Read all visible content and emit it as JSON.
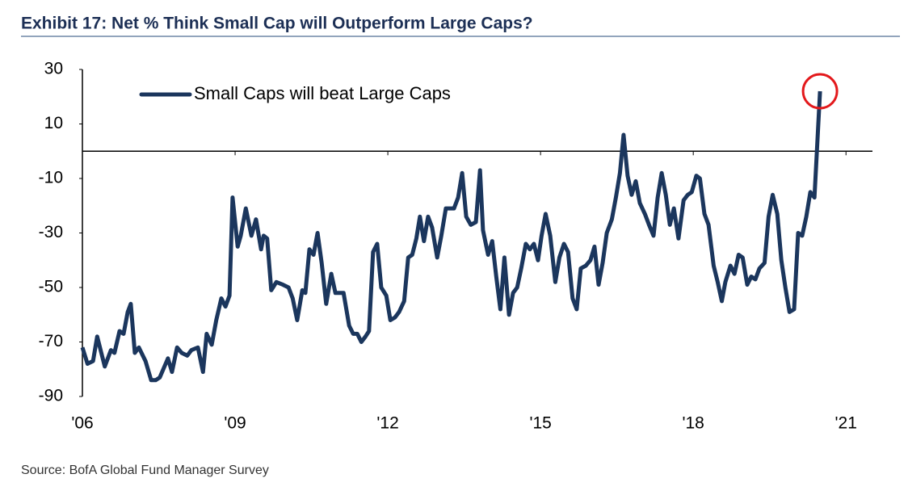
{
  "chart_data": {
    "type": "line",
    "title": "Exhibit 17: Net % Think Small Cap will Outperform Large Caps?",
    "source": "Source: BofA Global Fund Manager Survey",
    "x": [
      2006.0,
      2006.1,
      2006.21,
      2006.29,
      2006.44,
      2006.56,
      2006.63,
      2006.73,
      2006.81,
      2006.89,
      2006.95,
      2007.03,
      2007.11,
      2007.24,
      2007.35,
      2007.44,
      2007.52,
      2007.68,
      2007.76,
      2007.86,
      2007.95,
      2008.06,
      2008.14,
      2008.27,
      2008.37,
      2008.44,
      2008.54,
      2008.63,
      2008.73,
      2008.81,
      2008.89,
      2008.95,
      2009.05,
      2009.11,
      2009.21,
      2009.32,
      2009.41,
      2009.51,
      2009.56,
      2009.63,
      2009.71,
      2009.81,
      2009.94,
      2010.05,
      2010.13,
      2010.22,
      2010.32,
      2010.38,
      2010.46,
      2010.54,
      2010.62,
      2010.7,
      2010.79,
      2010.89,
      2010.97,
      2011.13,
      2011.24,
      2011.32,
      2011.4,
      2011.48,
      2011.56,
      2011.63,
      2011.71,
      2011.79,
      2011.87,
      2011.97,
      2012.05,
      2012.14,
      2012.22,
      2012.32,
      2012.4,
      2012.48,
      2012.56,
      2012.63,
      2012.71,
      2012.79,
      2012.87,
      2012.97,
      2013.05,
      2013.14,
      2013.22,
      2013.3,
      2013.38,
      2013.46,
      2013.54,
      2013.63,
      2013.73,
      2013.81,
      2013.87,
      2013.97,
      2014.05,
      2014.13,
      2014.21,
      2014.29,
      2014.38,
      2014.46,
      2014.54,
      2014.62,
      2014.71,
      2014.79,
      2014.87,
      2014.95,
      2015.02,
      2015.1,
      2015.19,
      2015.29,
      2015.37,
      2015.46,
      2015.54,
      2015.63,
      2015.71,
      2015.79,
      2015.89,
      2015.98,
      2016.06,
      2016.14,
      2016.22,
      2016.3,
      2016.4,
      2016.48,
      2016.56,
      2016.63,
      2016.71,
      2016.79,
      2016.87,
      2016.95,
      2017.05,
      2017.13,
      2017.22,
      2017.3,
      2017.38,
      2017.46,
      2017.54,
      2017.62,
      2017.71,
      2017.81,
      2017.89,
      2017.97,
      2018.06,
      2018.13,
      2018.22,
      2018.3,
      2018.4,
      2018.48,
      2018.56,
      2018.63,
      2018.73,
      2018.81,
      2018.89,
      2018.97,
      2019.06,
      2019.14,
      2019.22,
      2019.3,
      2019.4,
      2019.48,
      2019.56,
      2019.65,
      2019.73,
      2019.81,
      2019.89,
      2019.98,
      2020.06,
      2020.14,
      2020.22,
      2020.3,
      2020.38,
      2020.49
    ],
    "series": [
      {
        "name": "Small Caps will beat Large Caps",
        "color": "#1b365d",
        "values": [
          -72,
          -78,
          -77,
          -68,
          -79,
          -73,
          -74,
          -66,
          -67,
          -59,
          -56,
          -74,
          -72,
          -77,
          -84,
          -84,
          -83,
          -76,
          -81,
          -72,
          -74,
          -75,
          -73,
          -72,
          -81,
          -67,
          -71,
          -62,
          -54,
          -57,
          -53,
          -17,
          -35,
          -31,
          -21,
          -31,
          -25,
          -36,
          -31,
          -32,
          -51,
          -48,
          -49,
          -50,
          -54,
          -62,
          -51,
          -52,
          -36,
          -38,
          -30,
          -41,
          -56,
          -45,
          -52,
          -52,
          -64,
          -67,
          -67,
          -70,
          -68,
          -66,
          -37,
          -34,
          -50,
          -53,
          -62,
          -61,
          -59,
          -55,
          -39,
          -38,
          -32,
          -24,
          -33,
          -24,
          -28,
          -39,
          -31,
          -21,
          -21,
          -21,
          -17,
          -8,
          -24,
          -27,
          -26,
          -7,
          -29,
          -38,
          -33,
          -46,
          -58,
          -39,
          -60,
          -52,
          -50,
          -43,
          -34,
          -36,
          -34,
          -40,
          -31,
          -23,
          -31,
          -48,
          -39,
          -34,
          -37,
          -54,
          -58,
          -43,
          -42,
          -40,
          -35,
          -49,
          -41,
          -30,
          -25,
          -17,
          -8,
          6,
          -9,
          -16,
          -11,
          -19,
          -23,
          -27,
          -31,
          -17,
          -8,
          -16,
          -27,
          -21,
          -32,
          -18,
          -16,
          -15,
          -9,
          -10,
          -23,
          -27,
          -42,
          -48,
          -55,
          -48,
          -42,
          -45,
          -38,
          -39,
          -49,
          -46,
          -47,
          -43,
          -41,
          -24,
          -16,
          -23,
          -40,
          -50,
          -59,
          -58,
          -30,
          -31,
          -24,
          -15,
          -17,
          22
        ]
      }
    ],
    "xlim": [
      2006,
      2021.52
    ],
    "xticks": [
      {
        "value": 2006,
        "label": "'06"
      },
      {
        "value": 2009,
        "label": "'09"
      },
      {
        "value": 2012,
        "label": "'12"
      },
      {
        "value": 2015,
        "label": "'15"
      },
      {
        "value": 2018,
        "label": "'18"
      },
      {
        "value": 2021,
        "label": "'21"
      }
    ],
    "ylim": [
      -90,
      30
    ],
    "yticks": [
      -90,
      -70,
      -50,
      -30,
      -10,
      10,
      30
    ],
    "legend": "upper left"
  }
}
